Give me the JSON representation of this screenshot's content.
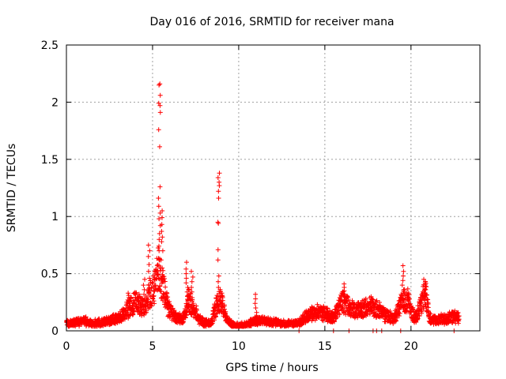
{
  "chart_data": {
    "type": "scatter",
    "title": "Day 016 of 2016, SRMTID for receiver mana",
    "xlabel": "GPS time / hours",
    "ylabel": "SRMTID / TECUs",
    "xlim": [
      0,
      24
    ],
    "ylim": [
      0,
      2.5
    ],
    "x_ticks": [
      0,
      5,
      10,
      15,
      20
    ],
    "y_ticks": [
      0,
      0.5,
      1,
      1.5,
      2,
      2.5
    ],
    "x_tick_labels": [
      "0",
      "5",
      "10",
      "15",
      "20"
    ],
    "y_tick_labels": [
      "0",
      "0.5",
      "1",
      "1.5",
      "2",
      "2.5"
    ],
    "grid": true,
    "marker": "+",
    "color": "#ff0000",
    "series": [
      {
        "name": "SRMTID",
        "baseline": [
          [
            0.0,
            0.07
          ],
          [
            0.5,
            0.08
          ],
          [
            1.0,
            0.1
          ],
          [
            1.5,
            0.07
          ],
          [
            2.0,
            0.08
          ],
          [
            2.5,
            0.1
          ],
          [
            3.0,
            0.13
          ],
          [
            3.5,
            0.2
          ],
          [
            4.0,
            0.28
          ],
          [
            4.5,
            0.22
          ],
          [
            4.8,
            0.35
          ],
          [
            5.1,
            0.4
          ],
          [
            5.3,
            0.6
          ],
          [
            5.6,
            0.45
          ],
          [
            5.9,
            0.22
          ],
          [
            6.2,
            0.15
          ],
          [
            6.5,
            0.12
          ],
          [
            6.8,
            0.12
          ],
          [
            7.1,
            0.3
          ],
          [
            7.4,
            0.2
          ],
          [
            7.7,
            0.12
          ],
          [
            8.0,
            0.08
          ],
          [
            8.4,
            0.07
          ],
          [
            8.7,
            0.25
          ],
          [
            9.0,
            0.3
          ],
          [
            9.3,
            0.12
          ],
          [
            9.6,
            0.06
          ],
          [
            10.0,
            0.05
          ],
          [
            10.5,
            0.06
          ],
          [
            11.0,
            0.1
          ],
          [
            11.5,
            0.1
          ],
          [
            12.0,
            0.08
          ],
          [
            12.5,
            0.07
          ],
          [
            13.0,
            0.07
          ],
          [
            13.5,
            0.08
          ],
          [
            14.0,
            0.15
          ],
          [
            14.5,
            0.18
          ],
          [
            15.0,
            0.17
          ],
          [
            15.5,
            0.12
          ],
          [
            16.0,
            0.28
          ],
          [
            16.5,
            0.22
          ],
          [
            17.0,
            0.2
          ],
          [
            17.5,
            0.25
          ],
          [
            18.0,
            0.22
          ],
          [
            18.5,
            0.15
          ],
          [
            19.0,
            0.12
          ],
          [
            19.5,
            0.28
          ],
          [
            19.8,
            0.3
          ],
          [
            20.2,
            0.12
          ],
          [
            20.6,
            0.25
          ],
          [
            20.8,
            0.38
          ],
          [
            21.1,
            0.12
          ],
          [
            21.5,
            0.1
          ],
          [
            22.0,
            0.12
          ],
          [
            22.5,
            0.14
          ],
          [
            22.8,
            0.12
          ]
        ],
        "spikes": [
          {
            "x": 5.4,
            "values": [
              2.16,
              2.15,
              2.06,
              1.99,
              1.97,
              1.91,
              1.76,
              1.61,
              1.26,
              1.16,
              1.09,
              1.03,
              0.98,
              0.92,
              0.85,
              0.8,
              0.74,
              0.7,
              0.63
            ]
          },
          {
            "x": 5.55,
            "values": [
              1.05,
              0.99,
              0.93,
              0.87,
              0.82,
              0.78,
              0.7,
              0.62,
              0.55,
              0.48
            ]
          },
          {
            "x": 4.8,
            "values": [
              0.75,
              0.7,
              0.65,
              0.58,
              0.52,
              0.46,
              0.4,
              0.34
            ]
          },
          {
            "x": 8.85,
            "values": [
              1.38,
              1.34,
              1.3,
              1.27,
              1.22,
              1.16,
              0.95,
              0.94,
              0.71,
              0.62,
              0.48,
              0.43,
              0.38
            ]
          },
          {
            "x": 7.0,
            "values": [
              0.6,
              0.54,
              0.5,
              0.46,
              0.42,
              0.38,
              0.34,
              0.3
            ]
          },
          {
            "x": 7.3,
            "values": [
              0.52,
              0.47,
              0.43,
              0.38,
              0.34,
              0.29
            ]
          },
          {
            "x": 19.55,
            "values": [
              0.57,
              0.52,
              0.48,
              0.44,
              0.4,
              0.36,
              0.33
            ]
          },
          {
            "x": 20.8,
            "values": [
              0.45,
              0.42,
              0.39,
              0.36,
              0.33,
              0.3
            ]
          },
          {
            "x": 11.0,
            "values": [
              0.32,
              0.28,
              0.24,
              0.2,
              0.16
            ]
          },
          {
            "x": 16.1,
            "values": [
              0.41,
              0.38,
              0.35,
              0.32,
              0.3
            ]
          },
          {
            "x": 3.6,
            "values": [
              0.33,
              0.31,
              0.29,
              0.27
            ]
          },
          {
            "x": 4.5,
            "values": [
              0.45,
              0.4,
              0.36,
              0.32
            ]
          }
        ],
        "floor_points": [
          [
            13.5,
            0.0
          ],
          [
            15.5,
            0.0
          ],
          [
            16.4,
            0.0
          ],
          [
            17.8,
            0.0
          ],
          [
            18.0,
            0.0
          ],
          [
            18.3,
            0.0
          ],
          [
            19.4,
            0.0
          ],
          [
            22.5,
            0.0
          ]
        ]
      }
    ]
  }
}
